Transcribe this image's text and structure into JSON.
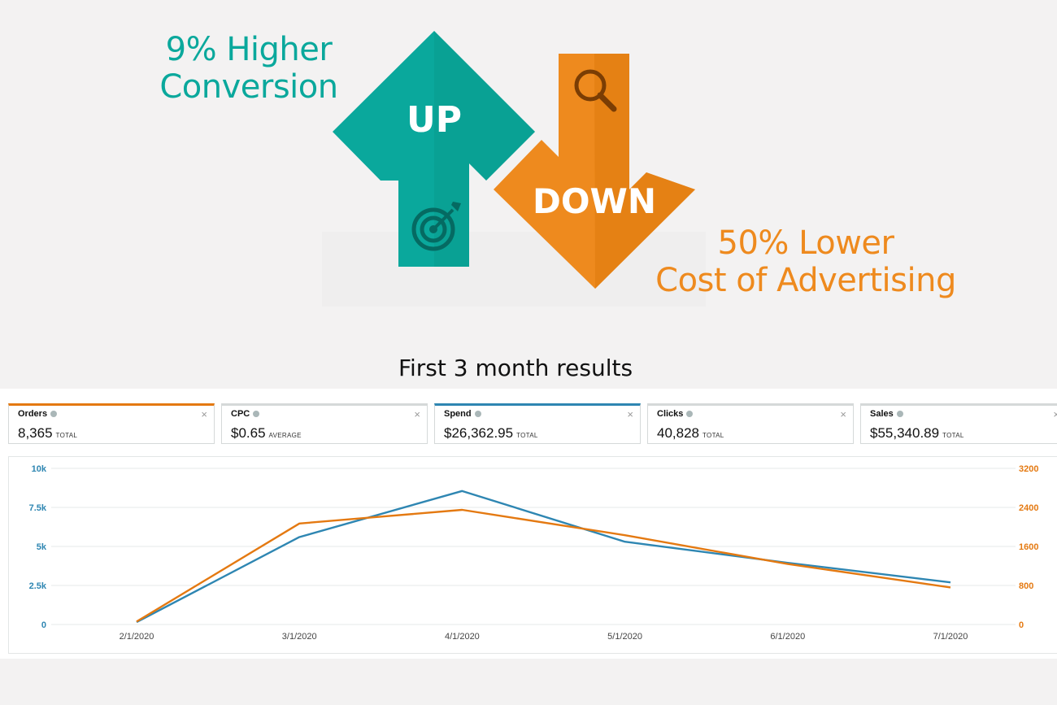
{
  "hero": {
    "up_line1": "9% Higher",
    "up_line2": "Conversion",
    "up_arrow_label": "UP",
    "down_arrow_label": "DOWN",
    "down_line1": "50% Lower",
    "down_line2": "Cost of Advertising",
    "up_color": "#0aa89c",
    "down_color": "#ee8a1e",
    "up_icon": "target-icon",
    "down_icon": "magnifier-icon"
  },
  "results_title": "First 3 month results",
  "metrics": [
    {
      "title": "Orders",
      "value": "8,365",
      "suffix": "TOTAL",
      "accent": "#e47911",
      "active": true
    },
    {
      "title": "CPC",
      "value": "$0.65",
      "suffix": "AVERAGE",
      "accent": "#d5d9d9",
      "active": false
    },
    {
      "title": "Spend",
      "value": "$26,362.95",
      "suffix": "TOTAL",
      "accent": "#2e86b2",
      "active": true
    },
    {
      "title": "Clicks",
      "value": "40,828",
      "suffix": "TOTAL",
      "accent": "#d5d9d9",
      "active": false
    },
    {
      "title": "Sales",
      "value": "$55,340.89",
      "suffix": "TOTAL",
      "accent": "#d5d9d9",
      "active": false
    }
  ],
  "chart_data": {
    "type": "line",
    "x": [
      "2/1/2020",
      "3/1/2020",
      "4/1/2020",
      "5/1/2020",
      "6/1/2020",
      "7/1/2020"
    ],
    "y_left_ticks": [
      "0",
      "2.5k",
      "5k",
      "7.5k",
      "10k"
    ],
    "y_right_ticks": [
      "0",
      "800",
      "1600",
      "2400",
      "3200"
    ],
    "ylim_left": [
      0,
      10000
    ],
    "ylim_right": [
      0,
      3200
    ],
    "grid": true,
    "series": [
      {
        "axis": "left",
        "color": "#2e86b2",
        "values": [
          150,
          5600,
          8550,
          5300,
          3950,
          2700
        ]
      },
      {
        "axis": "right",
        "color": "#e47911",
        "values": [
          60,
          2070,
          2350,
          1830,
          1240,
          760
        ]
      }
    ]
  }
}
